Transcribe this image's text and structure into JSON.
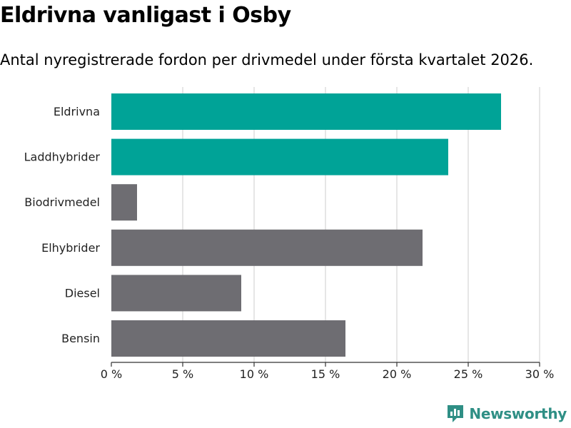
{
  "title": "Eldrivna vanligast i Osby",
  "subtitle": "Antal nyregistrerade fordon per drivmedel under första kvartalet 2026.",
  "logo": {
    "text": "Newsworthy",
    "icon": "newsworthy-logo-icon"
  },
  "colors": {
    "highlight": "#00a397",
    "default": "#6e6d72",
    "grid": "#dddddd",
    "axis": "#333333",
    "brand": "#2f8f85"
  },
  "chart_data": {
    "type": "bar",
    "orientation": "horizontal",
    "categories": [
      "Eldrivna",
      "Laddhybrider",
      "Biodrivmedel",
      "Elhybrider",
      "Diesel",
      "Bensin"
    ],
    "values": [
      27.3,
      23.6,
      1.8,
      21.8,
      9.1,
      16.4
    ],
    "highlighted": [
      true,
      true,
      false,
      false,
      false,
      false
    ],
    "unit": "%",
    "xlim": [
      0,
      30
    ],
    "ticks": [
      0,
      5,
      10,
      15,
      20,
      25,
      30
    ],
    "tick_labels": [
      "0 %",
      "5 %",
      "10 %",
      "15 %",
      "20 %",
      "25 %",
      "30 %"
    ],
    "grid": true
  }
}
